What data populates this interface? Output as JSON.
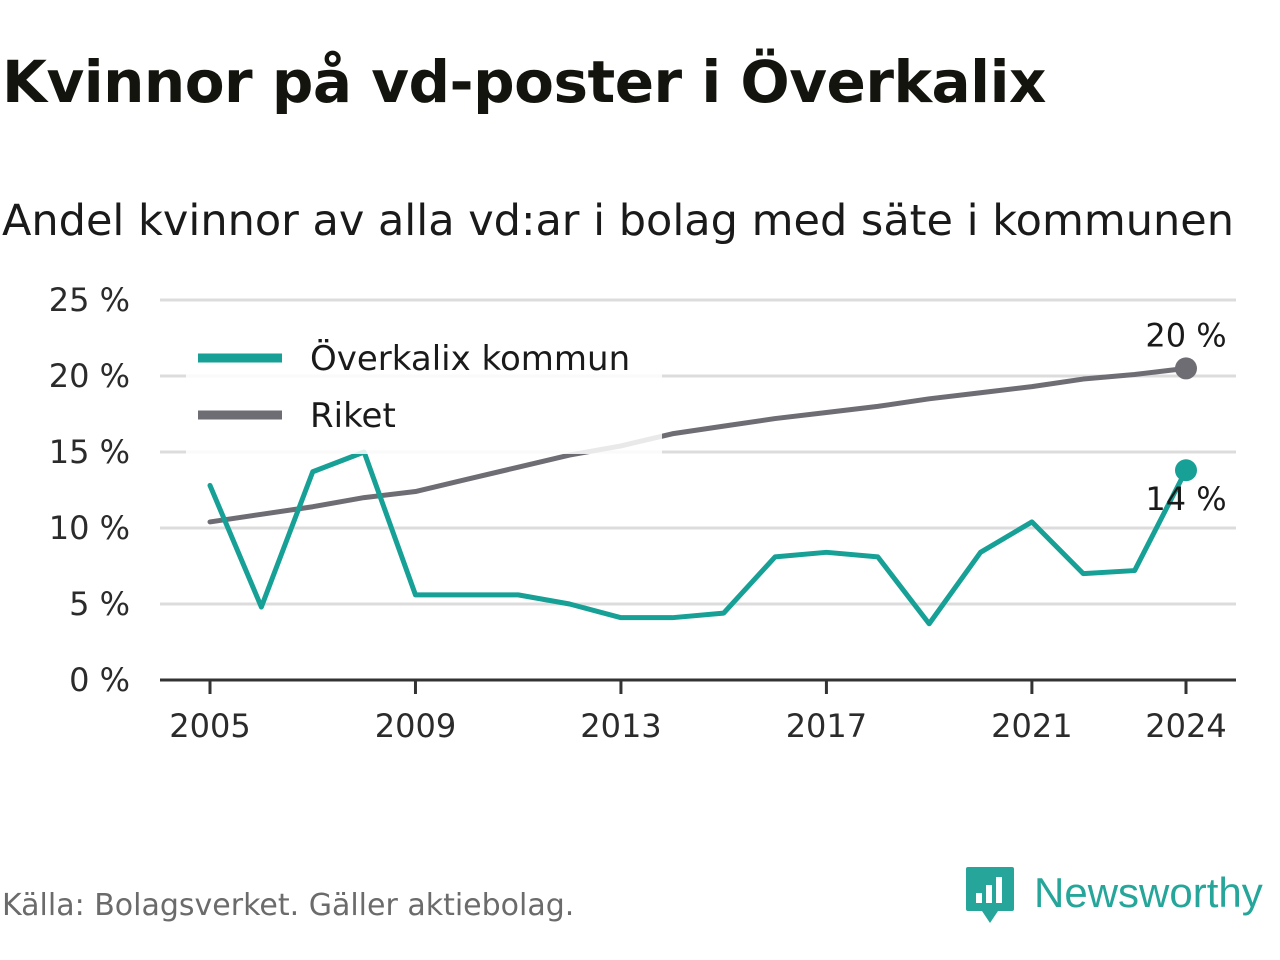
{
  "title": "Kvinnor på vd-poster i Överkalix",
  "subtitle": "Andel kvinnor av alla vd:ar i bolag med säte i kommunen",
  "source": "Källa: Bolagsverket. Gäller aktiebolag.",
  "logo": {
    "text": "Newsworthy",
    "icon": "newsworthy-logo-icon",
    "color": "#26a69a"
  },
  "chart_data": {
    "type": "line",
    "x": [
      2005,
      2006,
      2007,
      2008,
      2009,
      2010,
      2011,
      2012,
      2013,
      2014,
      2015,
      2016,
      2017,
      2018,
      2019,
      2020,
      2021,
      2022,
      2023,
      2024
    ],
    "series": [
      {
        "name": "Överkalix kommun",
        "color": "#16a096",
        "values": [
          12.8,
          4.8,
          13.7,
          15.0,
          5.6,
          5.6,
          5.6,
          5.0,
          4.1,
          4.1,
          4.4,
          8.1,
          8.4,
          8.1,
          3.7,
          8.4,
          10.4,
          7.0,
          7.2,
          13.8
        ],
        "end_label": "14 %"
      },
      {
        "name": "Riket",
        "color": "#6e6d74",
        "values": [
          10.4,
          10.9,
          11.4,
          12.0,
          12.4,
          13.2,
          14.0,
          14.8,
          15.4,
          16.2,
          16.7,
          17.2,
          17.6,
          18.0,
          18.5,
          18.9,
          19.3,
          19.8,
          20.1,
          20.5
        ],
        "end_label": "20 %"
      }
    ],
    "ylim": [
      0,
      25
    ],
    "yticks": [
      0,
      5,
      10,
      15,
      20,
      25
    ],
    "ytick_labels": [
      "0 %",
      "5 %",
      "10 %",
      "15 %",
      "20 %",
      "25 %"
    ],
    "xticks": [
      2005,
      2009,
      2013,
      2017,
      2021,
      2024
    ],
    "xtick_labels": [
      "2005",
      "2009",
      "2013",
      "2017",
      "2021",
      "2024"
    ],
    "xlabel": "",
    "ylabel": "",
    "grid": true,
    "legend_position": "top-left"
  }
}
